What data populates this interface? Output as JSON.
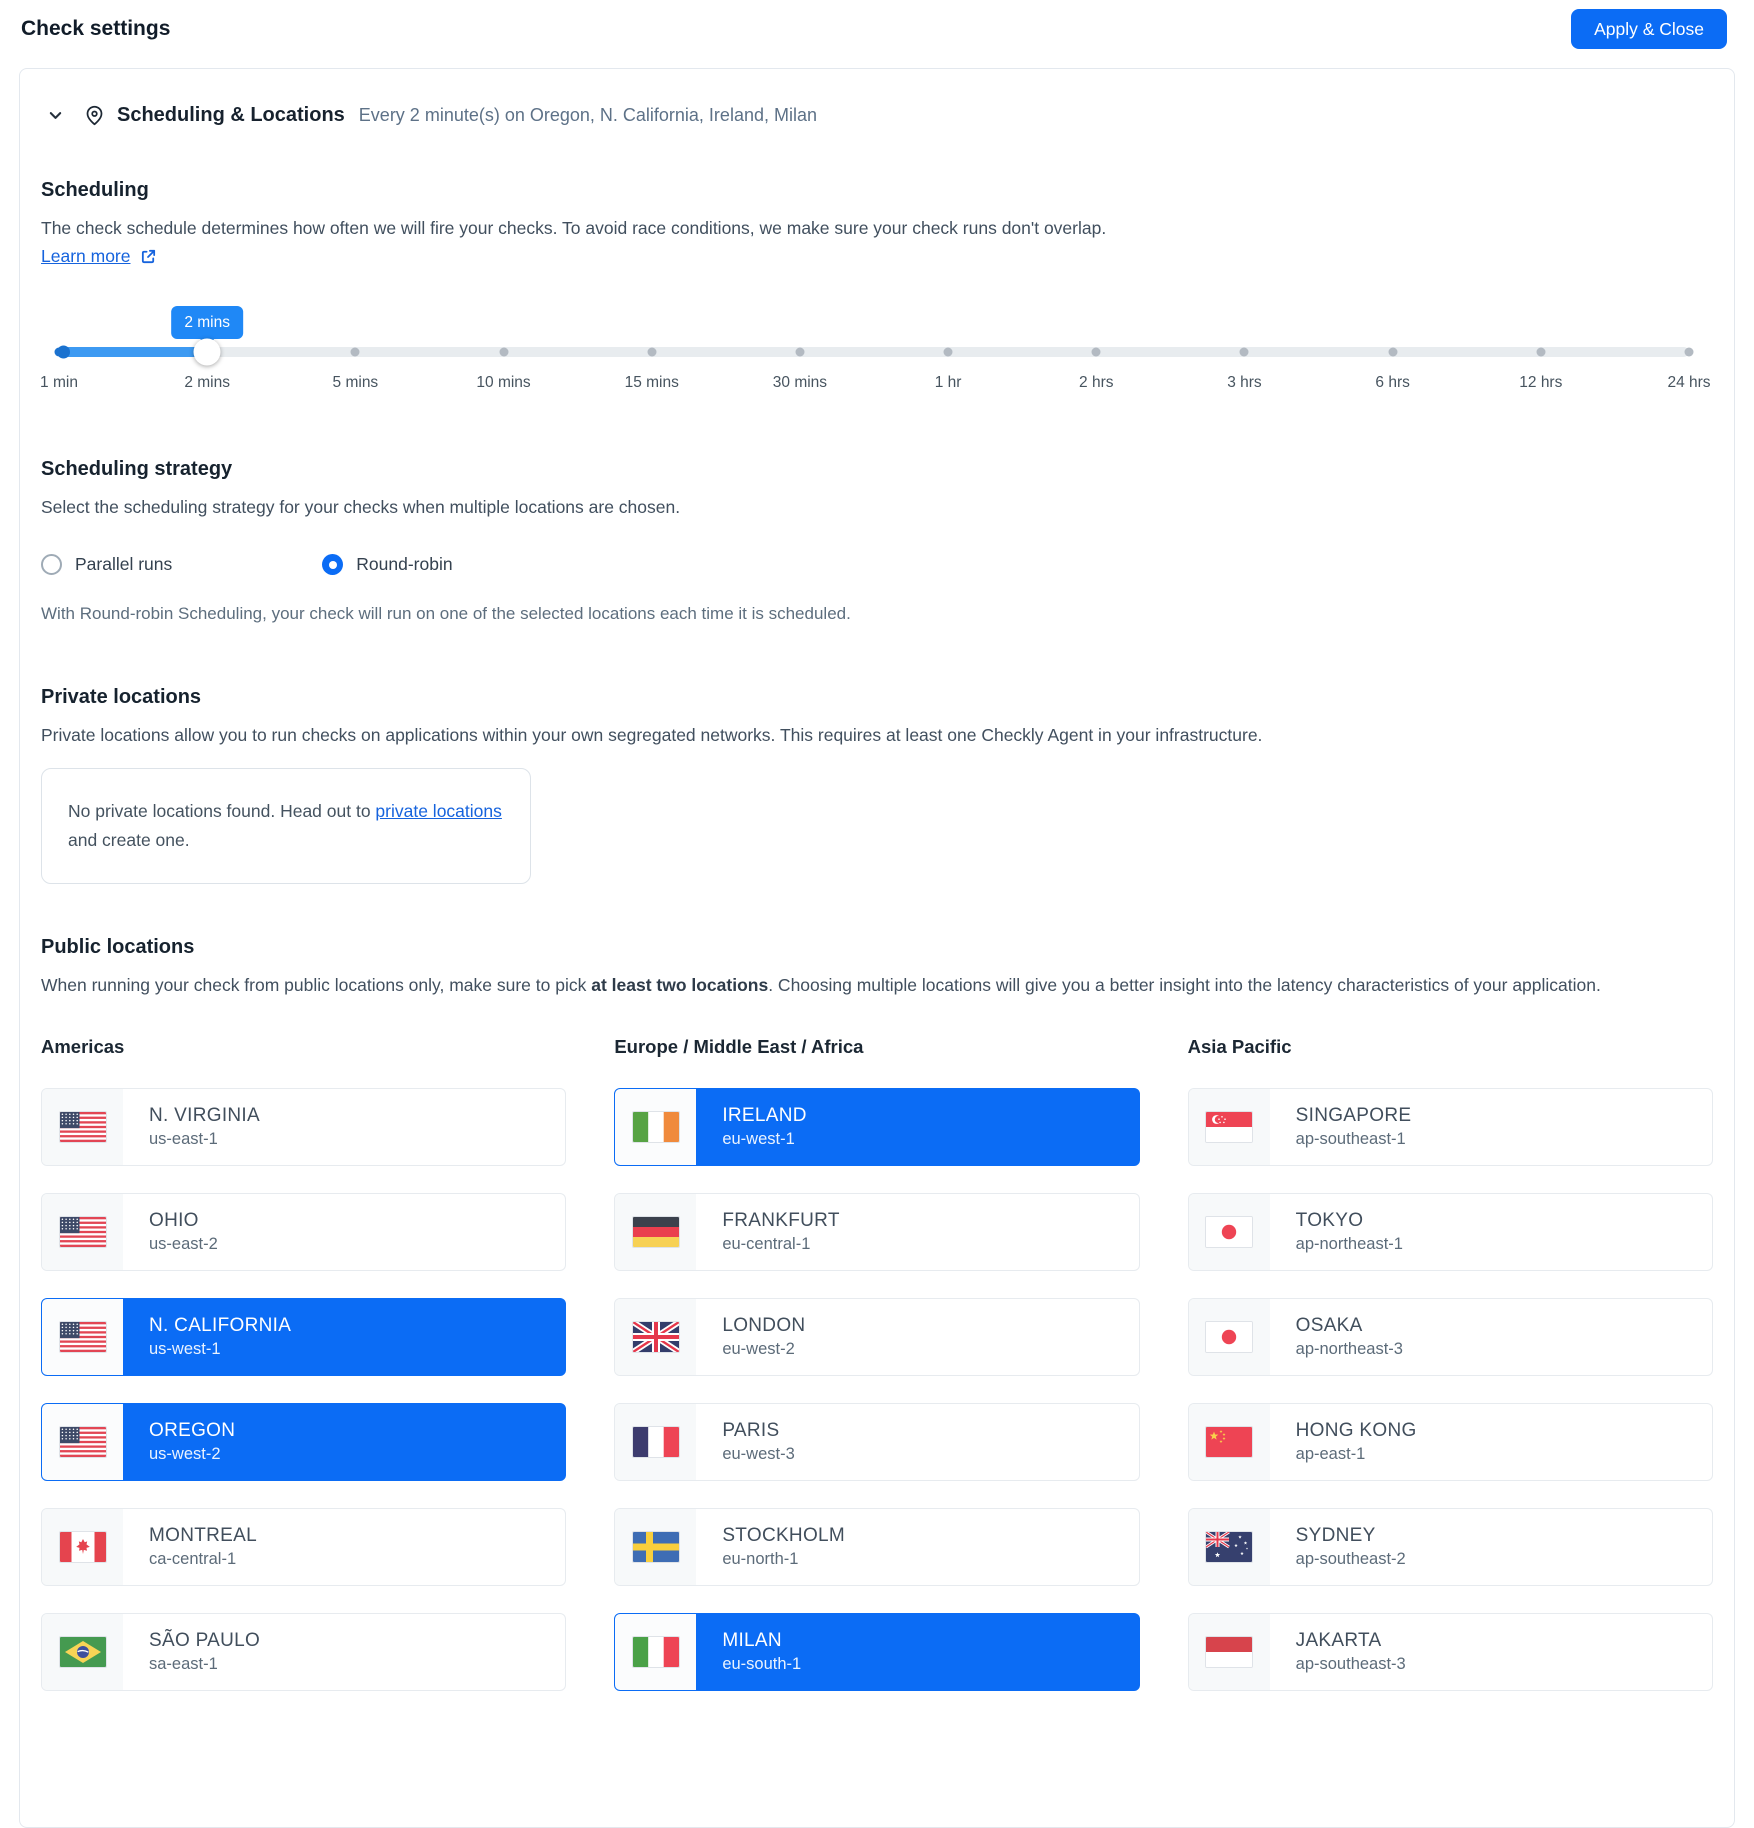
{
  "page": {
    "title": "Check settings"
  },
  "toolbar": {
    "apply_close_label": "Apply & Close"
  },
  "panel": {
    "title": "Scheduling & Locations",
    "subtitle": "Every 2 minute(s) on Oregon, N. California, Ireland, Milan"
  },
  "scheduling": {
    "heading": "Scheduling",
    "description": "The check schedule determines how often we will fire your checks. To avoid race conditions, we make sure your check runs don't overlap.",
    "learn_more_label": "Learn more",
    "slider": {
      "tooltip": "2 mins",
      "selected_index": 1,
      "ticks": [
        "1 min",
        "2 mins",
        "5 mins",
        "10 mins",
        "15 mins",
        "30 mins",
        "1 hr",
        "2 hrs",
        "3 hrs",
        "6 hrs",
        "12 hrs",
        "24 hrs"
      ]
    }
  },
  "strategy": {
    "heading": "Scheduling strategy",
    "description": "Select the scheduling strategy for your checks when multiple locations are chosen.",
    "options": [
      {
        "label": "Parallel runs",
        "selected": false
      },
      {
        "label": "Round-robin",
        "selected": true
      }
    ],
    "note": "With Round-robin Scheduling, your check will run on one of the selected locations each time it is scheduled."
  },
  "private_locations": {
    "heading": "Private locations",
    "description": "Private locations allow you to run checks on applications within your own segregated networks. This requires at least one Checkly Agent in your infrastructure.",
    "empty_text_before": "No private locations found. Head out to ",
    "empty_link_label": "private locations",
    "empty_text_after": " and create one."
  },
  "public_locations": {
    "heading": "Public locations",
    "description_before": "When running your check from public locations only, make sure to pick ",
    "description_bold": "at least two locations",
    "description_after": ". Choosing multiple locations will give you a better insight into the latency characteristics of your application.",
    "groups": [
      {
        "name": "Americas",
        "locations": [
          {
            "city": "N. VIRGINIA",
            "region": "us-east-1",
            "flag": "us",
            "selected": false
          },
          {
            "city": "OHIO",
            "region": "us-east-2",
            "flag": "us",
            "selected": false
          },
          {
            "city": "N. CALIFORNIA",
            "region": "us-west-1",
            "flag": "us",
            "selected": true
          },
          {
            "city": "OREGON",
            "region": "us-west-2",
            "flag": "us",
            "selected": true
          },
          {
            "city": "MONTREAL",
            "region": "ca-central-1",
            "flag": "ca",
            "selected": false
          },
          {
            "city": "SÃO PAULO",
            "region": "sa-east-1",
            "flag": "br",
            "selected": false
          }
        ]
      },
      {
        "name": "Europe / Middle East / Africa",
        "locations": [
          {
            "city": "IRELAND",
            "region": "eu-west-1",
            "flag": "ie",
            "selected": true
          },
          {
            "city": "FRANKFURT",
            "region": "eu-central-1",
            "flag": "de",
            "selected": false
          },
          {
            "city": "LONDON",
            "region": "eu-west-2",
            "flag": "gb",
            "selected": false
          },
          {
            "city": "PARIS",
            "region": "eu-west-3",
            "flag": "fr",
            "selected": false
          },
          {
            "city": "STOCKHOLM",
            "region": "eu-north-1",
            "flag": "se",
            "selected": false
          },
          {
            "city": "MILAN",
            "region": "eu-south-1",
            "flag": "it",
            "selected": true
          }
        ]
      },
      {
        "name": "Asia Pacific",
        "locations": [
          {
            "city": "SINGAPORE",
            "region": "ap-southeast-1",
            "flag": "sg",
            "selected": false
          },
          {
            "city": "TOKYO",
            "region": "ap-northeast-1",
            "flag": "jp",
            "selected": false
          },
          {
            "city": "OSAKA",
            "region": "ap-northeast-3",
            "flag": "jp",
            "selected": false
          },
          {
            "city": "HONG KONG",
            "region": "ap-east-1",
            "flag": "cn",
            "selected": false
          },
          {
            "city": "SYDNEY",
            "region": "ap-southeast-2",
            "flag": "au",
            "selected": false
          },
          {
            "city": "JAKARTA",
            "region": "ap-southeast-3",
            "flag": "id",
            "selected": false
          }
        ]
      }
    ]
  },
  "colors": {
    "accent": "#0b6cf5",
    "link": "#1663dd",
    "tooltip": "#1f88f6",
    "slider_fill": "#3d9af2",
    "slider_deep": "#1b72cf",
    "selected_card": "#0b6cf5"
  }
}
